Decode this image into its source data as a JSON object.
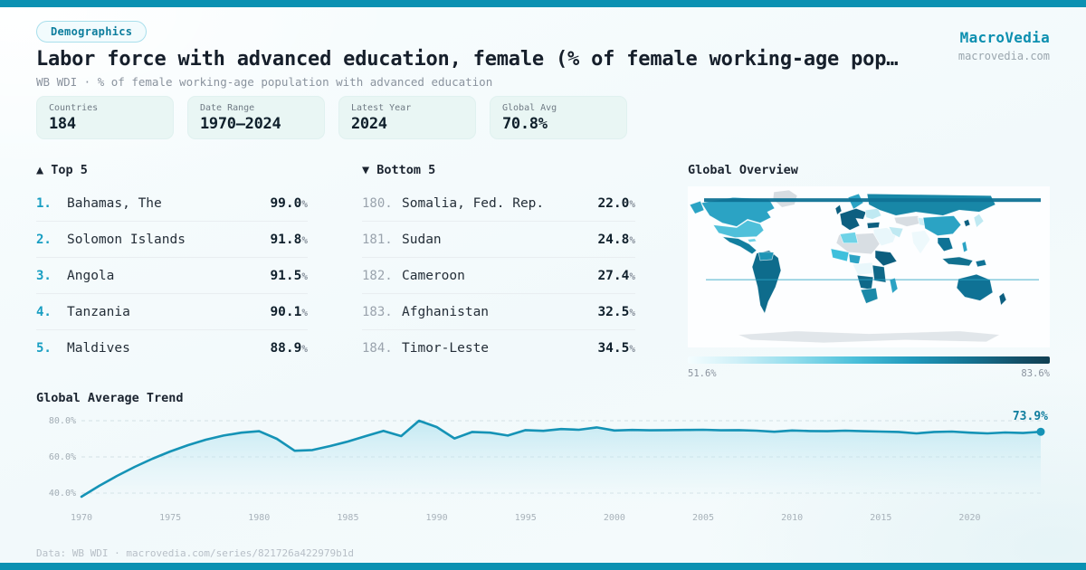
{
  "colors": {
    "accent": "#0b91b2",
    "line": "#1593b6",
    "ink": "#161f2b",
    "muted": "#8a939e",
    "legend_min_color": "#f4fdff",
    "legend_max_color": "#113f52"
  },
  "header": {
    "badge": "Demographics",
    "title": "Labor force with advanced education, female (% of female working-age pop…",
    "subtitle": "WB WDI · % of female working-age population with advanced education",
    "brand": "MacroVedia",
    "brand_domain": "macrovedia.com"
  },
  "percent_sign": "%",
  "stats": [
    {
      "label": "Countries",
      "value": "184"
    },
    {
      "label": "Date Range",
      "value": "1970–2024"
    },
    {
      "label": "Latest Year",
      "value": "2024"
    },
    {
      "label": "Global Avg",
      "value": "70.8%"
    }
  ],
  "top5": {
    "heading": "▲ Top 5",
    "rows": [
      {
        "rank": "1.",
        "name": "Bahamas, The",
        "value": "99.0"
      },
      {
        "rank": "2.",
        "name": "Solomon Islands",
        "value": "91.8"
      },
      {
        "rank": "3.",
        "name": "Angola",
        "value": "91.5"
      },
      {
        "rank": "4.",
        "name": "Tanzania",
        "value": "90.1"
      },
      {
        "rank": "5.",
        "name": "Maldives",
        "value": "88.9"
      }
    ]
  },
  "bottom5": {
    "heading": "▼ Bottom 5",
    "rows": [
      {
        "rank": "180.",
        "name": "Somalia, Fed. Rep.",
        "value": "22.0"
      },
      {
        "rank": "181.",
        "name": "Sudan",
        "value": "24.8"
      },
      {
        "rank": "182.",
        "name": "Cameroon",
        "value": "27.4"
      },
      {
        "rank": "183.",
        "name": "Afghanistan",
        "value": "32.5"
      },
      {
        "rank": "184.",
        "name": "Timor-Leste",
        "value": "34.5"
      }
    ]
  },
  "map": {
    "title": "Global Overview",
    "legend_min_label": "51.6%",
    "legend_max_label": "83.6%"
  },
  "chart_data": {
    "type": "area",
    "title": "Global Average Trend",
    "xlabel": "",
    "ylabel": "",
    "xlim": [
      1970,
      2024
    ],
    "ylim": [
      32,
      86
    ],
    "grid": "dashed-horizontal",
    "legend_position": "none",
    "line_color": "#1593b6",
    "end_label": "73.9%",
    "y_ticks": [
      {
        "v": 80,
        "label": "80.0%"
      },
      {
        "v": 60,
        "label": "60.0%"
      },
      {
        "v": 40,
        "label": "40.0%"
      }
    ],
    "x_ticks": [
      1970,
      1975,
      1980,
      1985,
      1990,
      1995,
      2000,
      2005,
      2010,
      2015,
      2020
    ],
    "years": [
      1970,
      1971,
      1972,
      1973,
      1974,
      1975,
      1976,
      1977,
      1978,
      1979,
      1980,
      1981,
      1982,
      1983,
      1984,
      1985,
      1986,
      1987,
      1988,
      1989,
      1990,
      1991,
      1992,
      1993,
      1994,
      1995,
      1996,
      1997,
      1998,
      1999,
      2000,
      2001,
      2002,
      2003,
      2004,
      2005,
      2006,
      2007,
      2008,
      2009,
      2010,
      2011,
      2012,
      2013,
      2014,
      2015,
      2016,
      2017,
      2018,
      2019,
      2020,
      2021,
      2022,
      2023,
      2024
    ],
    "values": [
      38.0,
      44.0,
      49.5,
      54.5,
      59.0,
      63.0,
      66.5,
      69.5,
      71.8,
      73.4,
      74.2,
      70.0,
      63.4,
      63.8,
      66.0,
      68.5,
      71.5,
      74.4,
      71.5,
      80.0,
      76.5,
      70.2,
      73.8,
      73.4,
      71.8,
      74.8,
      74.4,
      75.4,
      75.0,
      76.3,
      74.6,
      74.9,
      74.7,
      74.8,
      74.9,
      75.0,
      74.7,
      74.8,
      74.5,
      73.9,
      74.6,
      74.3,
      74.2,
      74.5,
      74.2,
      74.0,
      73.8,
      73.0,
      73.8,
      74.0,
      73.4,
      73.0,
      73.5,
      73.2,
      73.9
    ]
  },
  "footer": {
    "text": "Data: WB WDI · macrovedia.com/series/821726a422979b1d"
  }
}
